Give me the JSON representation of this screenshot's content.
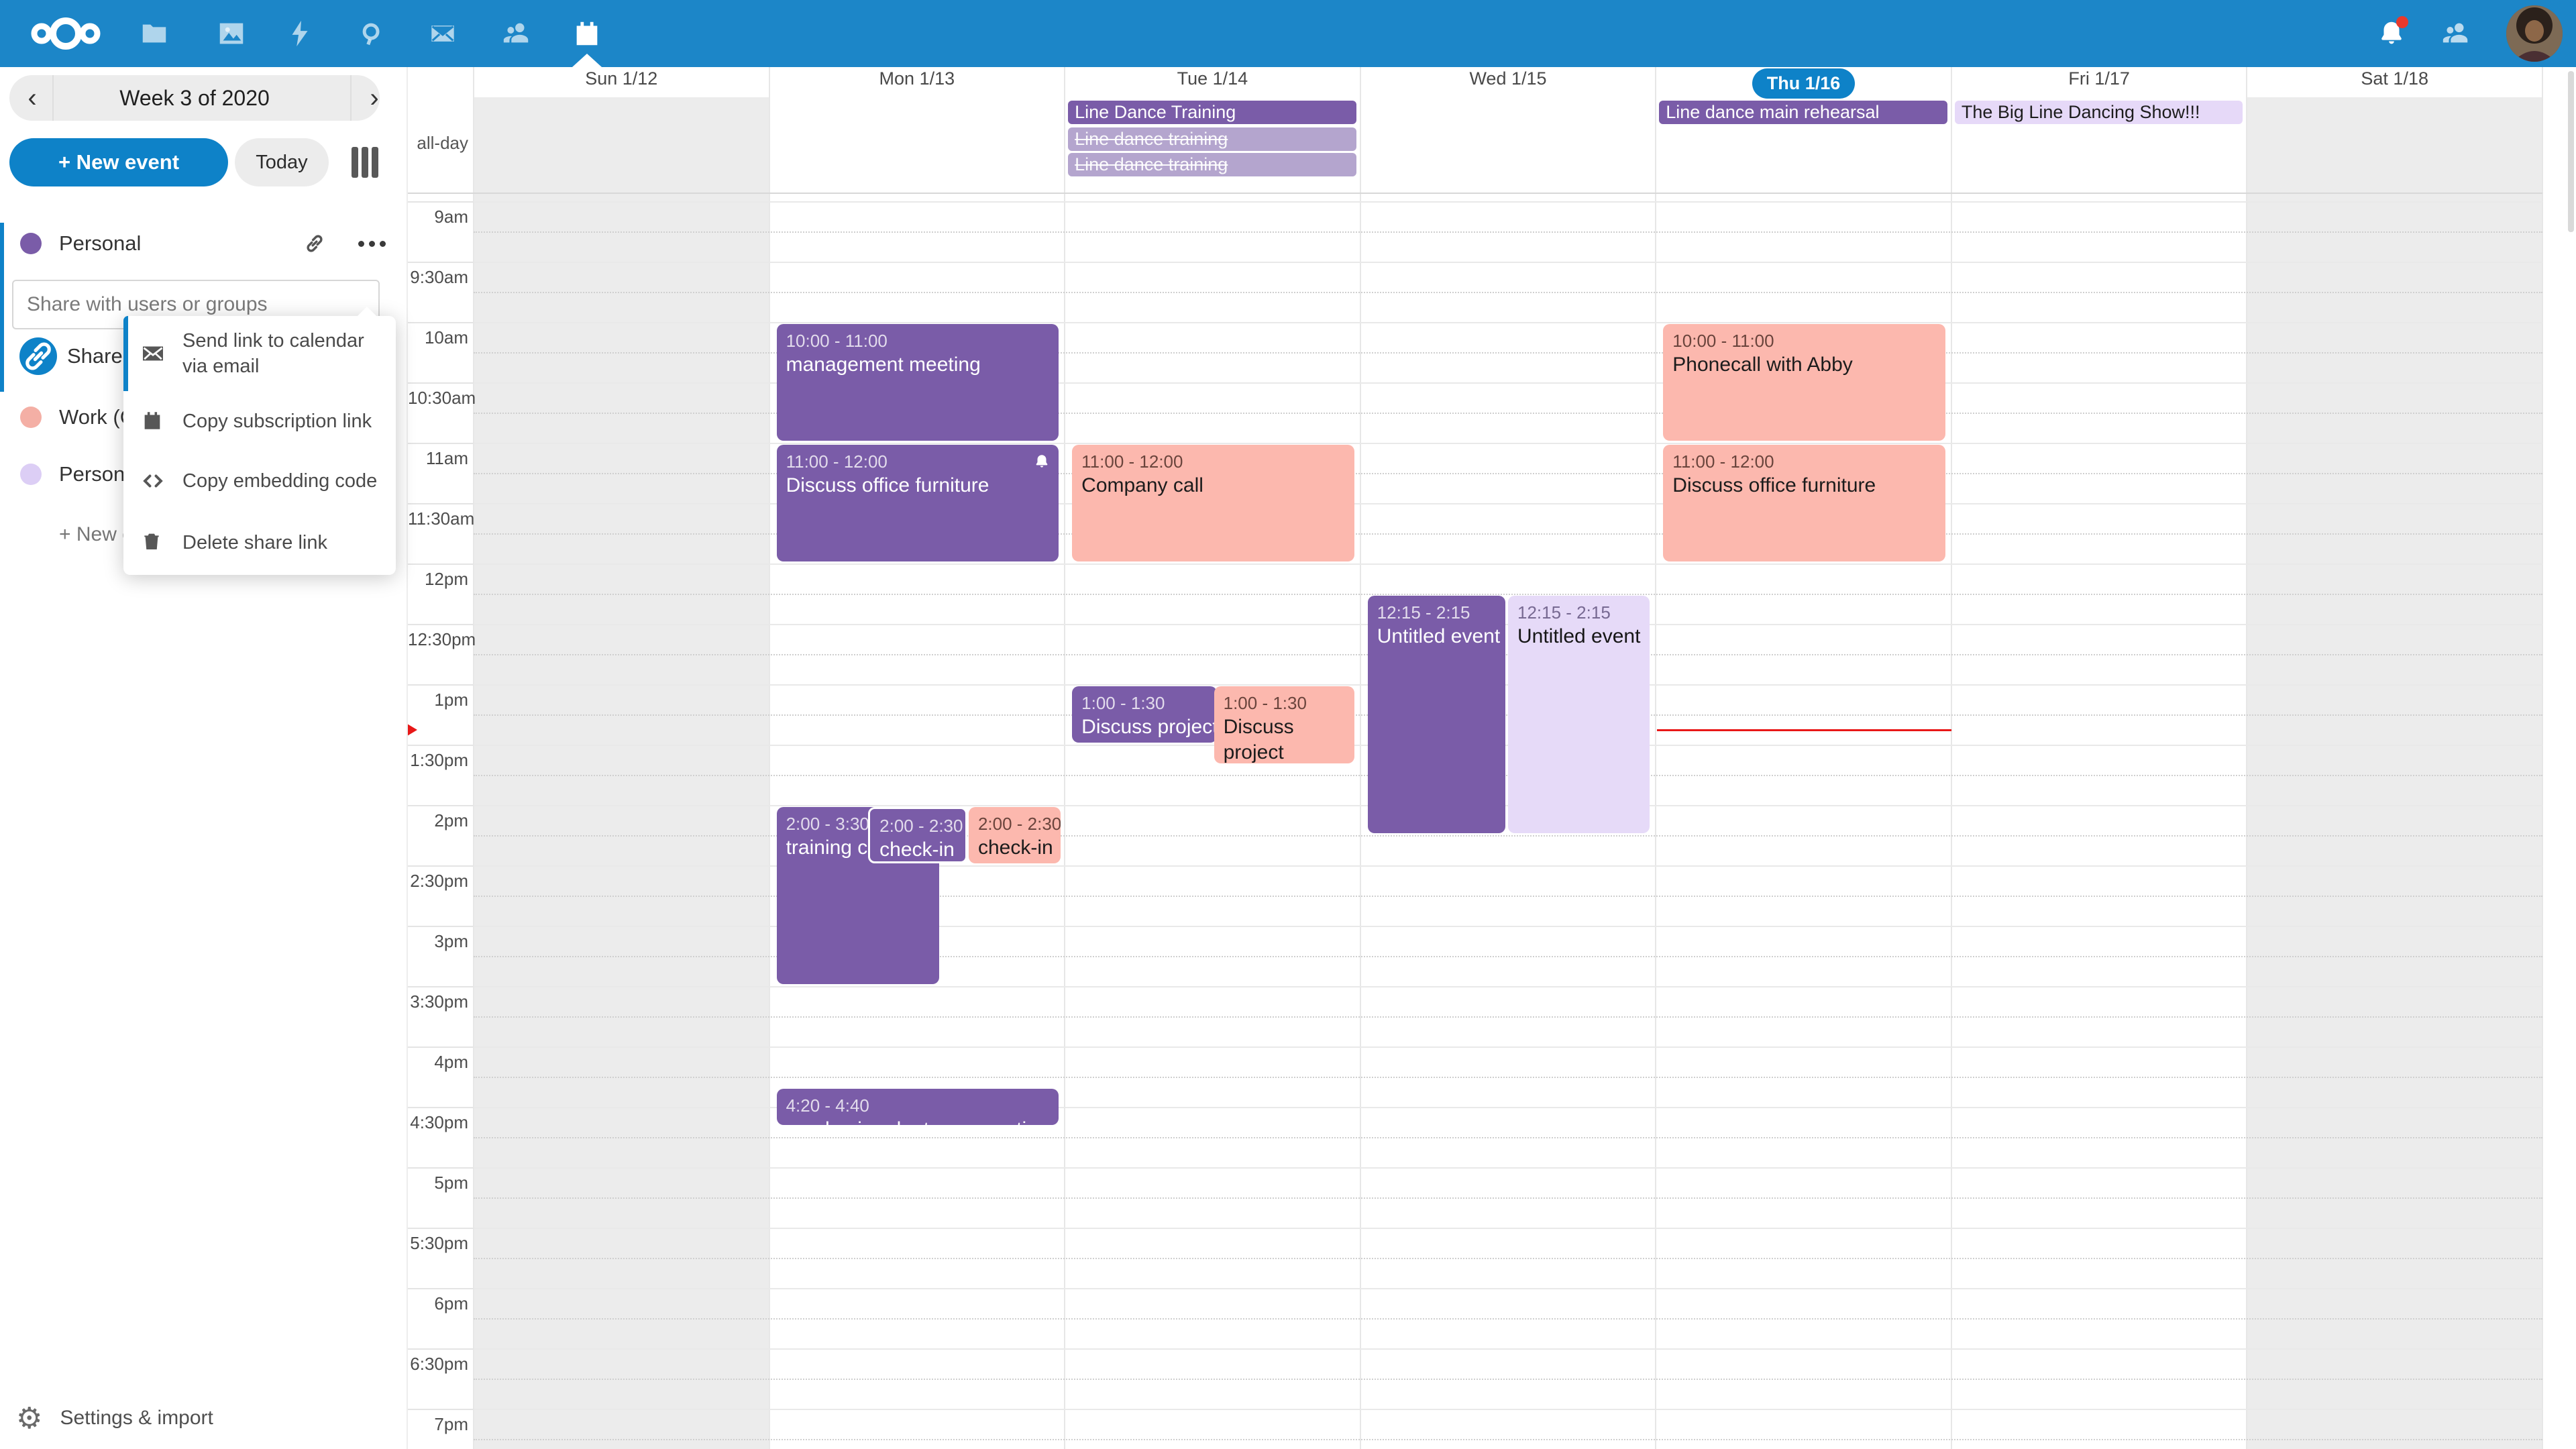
{
  "app": {
    "accent": "#0e82c8",
    "topbar_color": "#1c86c8"
  },
  "topbar": {
    "apps": [
      {
        "name": "files"
      },
      {
        "name": "photos"
      },
      {
        "name": "activity"
      },
      {
        "name": "search"
      },
      {
        "name": "mail"
      },
      {
        "name": "contacts"
      },
      {
        "name": "calendar",
        "active": true
      }
    ],
    "has_notification_badge": true
  },
  "sidebar": {
    "week_label": "Week 3 of 2020",
    "new_event_label": "+ New event",
    "today_label": "Today",
    "personal_calendar": {
      "name": "Personal",
      "color": "#7a5ca8"
    },
    "share_placeholder": "Share with users or groups",
    "share_link_label": "Share link",
    "other_calendars": [
      {
        "name": "Work (C",
        "color": "#f4afa5"
      },
      {
        "name": "Persona",
        "color": "#dccef5"
      }
    ],
    "new_calendar_label": "+ New c",
    "settings_label": "Settings & import"
  },
  "share_menu": {
    "items": [
      {
        "icon": "mail-icon",
        "label": "Send link to calendar via email"
      },
      {
        "icon": "calendar-icon",
        "label": "Copy subscription link"
      },
      {
        "icon": "code-icon",
        "label": "Copy embedding code"
      },
      {
        "icon": "trash-icon",
        "label": "Delete share link"
      }
    ]
  },
  "calendar": {
    "allday_label": "all-day",
    "days": [
      {
        "label": "Sun 1/12",
        "weekend": true
      },
      {
        "label": "Mon 1/13"
      },
      {
        "label": "Tue 1/14"
      },
      {
        "label": "Wed 1/15"
      },
      {
        "label": "Thu 1/16",
        "today": true
      },
      {
        "label": "Fri 1/17"
      },
      {
        "label": "Sat 1/18",
        "weekend": true
      }
    ],
    "time_labels": [
      "9am",
      "9:30am",
      "10am",
      "10:30am",
      "11am",
      "11:30am",
      "12pm",
      "12:30pm",
      "1pm",
      "1:30pm",
      "2pm",
      "2:30pm",
      "3pm",
      "3:30pm",
      "4pm",
      "4:30pm",
      "5pm",
      "5:30pm",
      "6pm",
      "6:30pm",
      "7pm"
    ],
    "colors": {
      "purple": "#7a5ca8",
      "purple_muted": "#b4a5ce",
      "pink": "#fcb8ae",
      "lavender": "#e6daf8"
    },
    "all_day_events": [
      {
        "day": 2,
        "row": 0,
        "title": "Line Dance Training",
        "color": "purple"
      },
      {
        "day": 2,
        "row": 1,
        "title": "Line dance training",
        "color": "muted",
        "cancelled": true
      },
      {
        "day": 2,
        "row": 2,
        "title": "Line dance training",
        "color": "muted",
        "cancelled": true
      },
      {
        "day": 4,
        "row": 0,
        "title": "Line dance main rehearsal",
        "color": "purple"
      },
      {
        "day": 5,
        "row": 0,
        "title": "The Big Line Dancing Show!!!",
        "color": "lavender"
      }
    ],
    "events": [
      {
        "day": 1,
        "time": "10:00 - 11:00",
        "start": 10,
        "end": 11,
        "title": "management meeting",
        "color": "purple",
        "x": 0.025,
        "w": 0.955
      },
      {
        "day": 1,
        "time": "11:00 - 12:00",
        "start": 11,
        "end": 12,
        "title": "Discuss office furniture",
        "color": "purple",
        "x": 0.025,
        "w": 0.955,
        "alarm": true
      },
      {
        "day": 1,
        "time": "2:00 - 3:30",
        "start": 14,
        "end": 15.5,
        "title": "training call",
        "color": "purple",
        "x": 0.025,
        "w": 0.55
      },
      {
        "day": 1,
        "time": "2:00 - 2:30",
        "start": 14,
        "end": 14.5,
        "title": "check-in",
        "color": "purple",
        "x": 0.335,
        "w": 0.335,
        "outline": true
      },
      {
        "day": 1,
        "time": "2:00 - 2:30",
        "start": 14,
        "end": 14.5,
        "title": "check-in",
        "color": "pink",
        "x": 0.675,
        "w": 0.31
      },
      {
        "day": 1,
        "time": "4:20 - 4:40",
        "start": 16.333,
        "end": 16.667,
        "title": "purchasing dept conversation",
        "color": "purple",
        "x": 0.025,
        "w": 0.955
      },
      {
        "day": 2,
        "time": "11:00 - 12:00",
        "start": 11,
        "end": 12,
        "title": "Company call",
        "color": "pink",
        "x": 0.025,
        "w": 0.955
      },
      {
        "day": 2,
        "time": "1:00 - 1:30",
        "start": 13,
        "end": 13.5,
        "title": "Discuss project announcement",
        "color": "purple",
        "x": 0.025,
        "w": 0.49
      },
      {
        "day": 2,
        "time": "1:00 - 1:30",
        "start": 13,
        "end": 13.5,
        "title": "Discuss project announcement",
        "color": "pink",
        "x": 0.505,
        "w": 0.475,
        "wrap": true,
        "min_h": 115
      },
      {
        "day": 3,
        "time": "12:15 - 2:15",
        "start": 12.25,
        "end": 14.25,
        "title": "Untitled event",
        "color": "purple",
        "x": 0.025,
        "w": 0.465
      },
      {
        "day": 3,
        "time": "12:15 - 2:15",
        "start": 12.25,
        "end": 14.25,
        "title": "Untitled event",
        "color": "lavender",
        "x": 0.5,
        "w": 0.48
      },
      {
        "day": 4,
        "time": "10:00 - 11:00",
        "start": 10,
        "end": 11,
        "title": "Phonecall with Abby",
        "color": "pink",
        "x": 0.025,
        "w": 0.955
      },
      {
        "day": 4,
        "time": "11:00 - 12:00",
        "start": 11,
        "end": 12,
        "title": "Discuss office furniture",
        "color": "pink",
        "x": 0.025,
        "w": 0.955
      }
    ],
    "now_indicator": {
      "day": 4,
      "time": 13.37
    }
  }
}
